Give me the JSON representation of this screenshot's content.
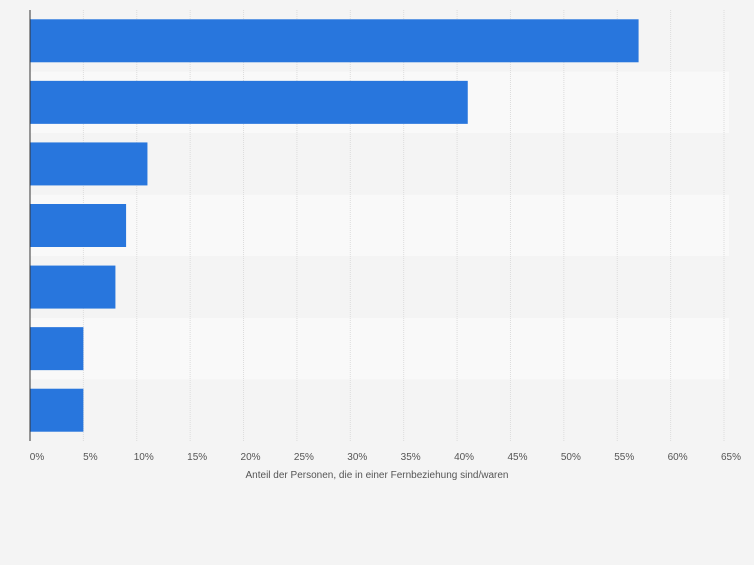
{
  "colors": {
    "background": "#f4f4f4",
    "bar": "#2876dd",
    "band_light": "#f9f9f9",
    "band_dark": "#f4f4f4",
    "grid": "#dcdcdc",
    "axis": "#333333",
    "tick_text": "#555555"
  },
  "chart_data": {
    "type": "bar",
    "orientation": "horizontal",
    "categories": [
      "",
      "",
      "",
      "",
      "",
      "",
      ""
    ],
    "values": [
      57,
      41,
      11,
      9,
      8,
      5,
      5
    ],
    "title": "",
    "xlabel": "Anteil der Personen, die in einer Fernbeziehung sind/waren",
    "ylabel": "",
    "xlim": [
      0,
      65
    ],
    "xticks": [
      "0%",
      "5%",
      "10%",
      "15%",
      "20%",
      "25%",
      "30%",
      "35%",
      "40%",
      "45%",
      "50%",
      "55%",
      "60%",
      "65%"
    ],
    "grid": true,
    "legend": "none"
  }
}
